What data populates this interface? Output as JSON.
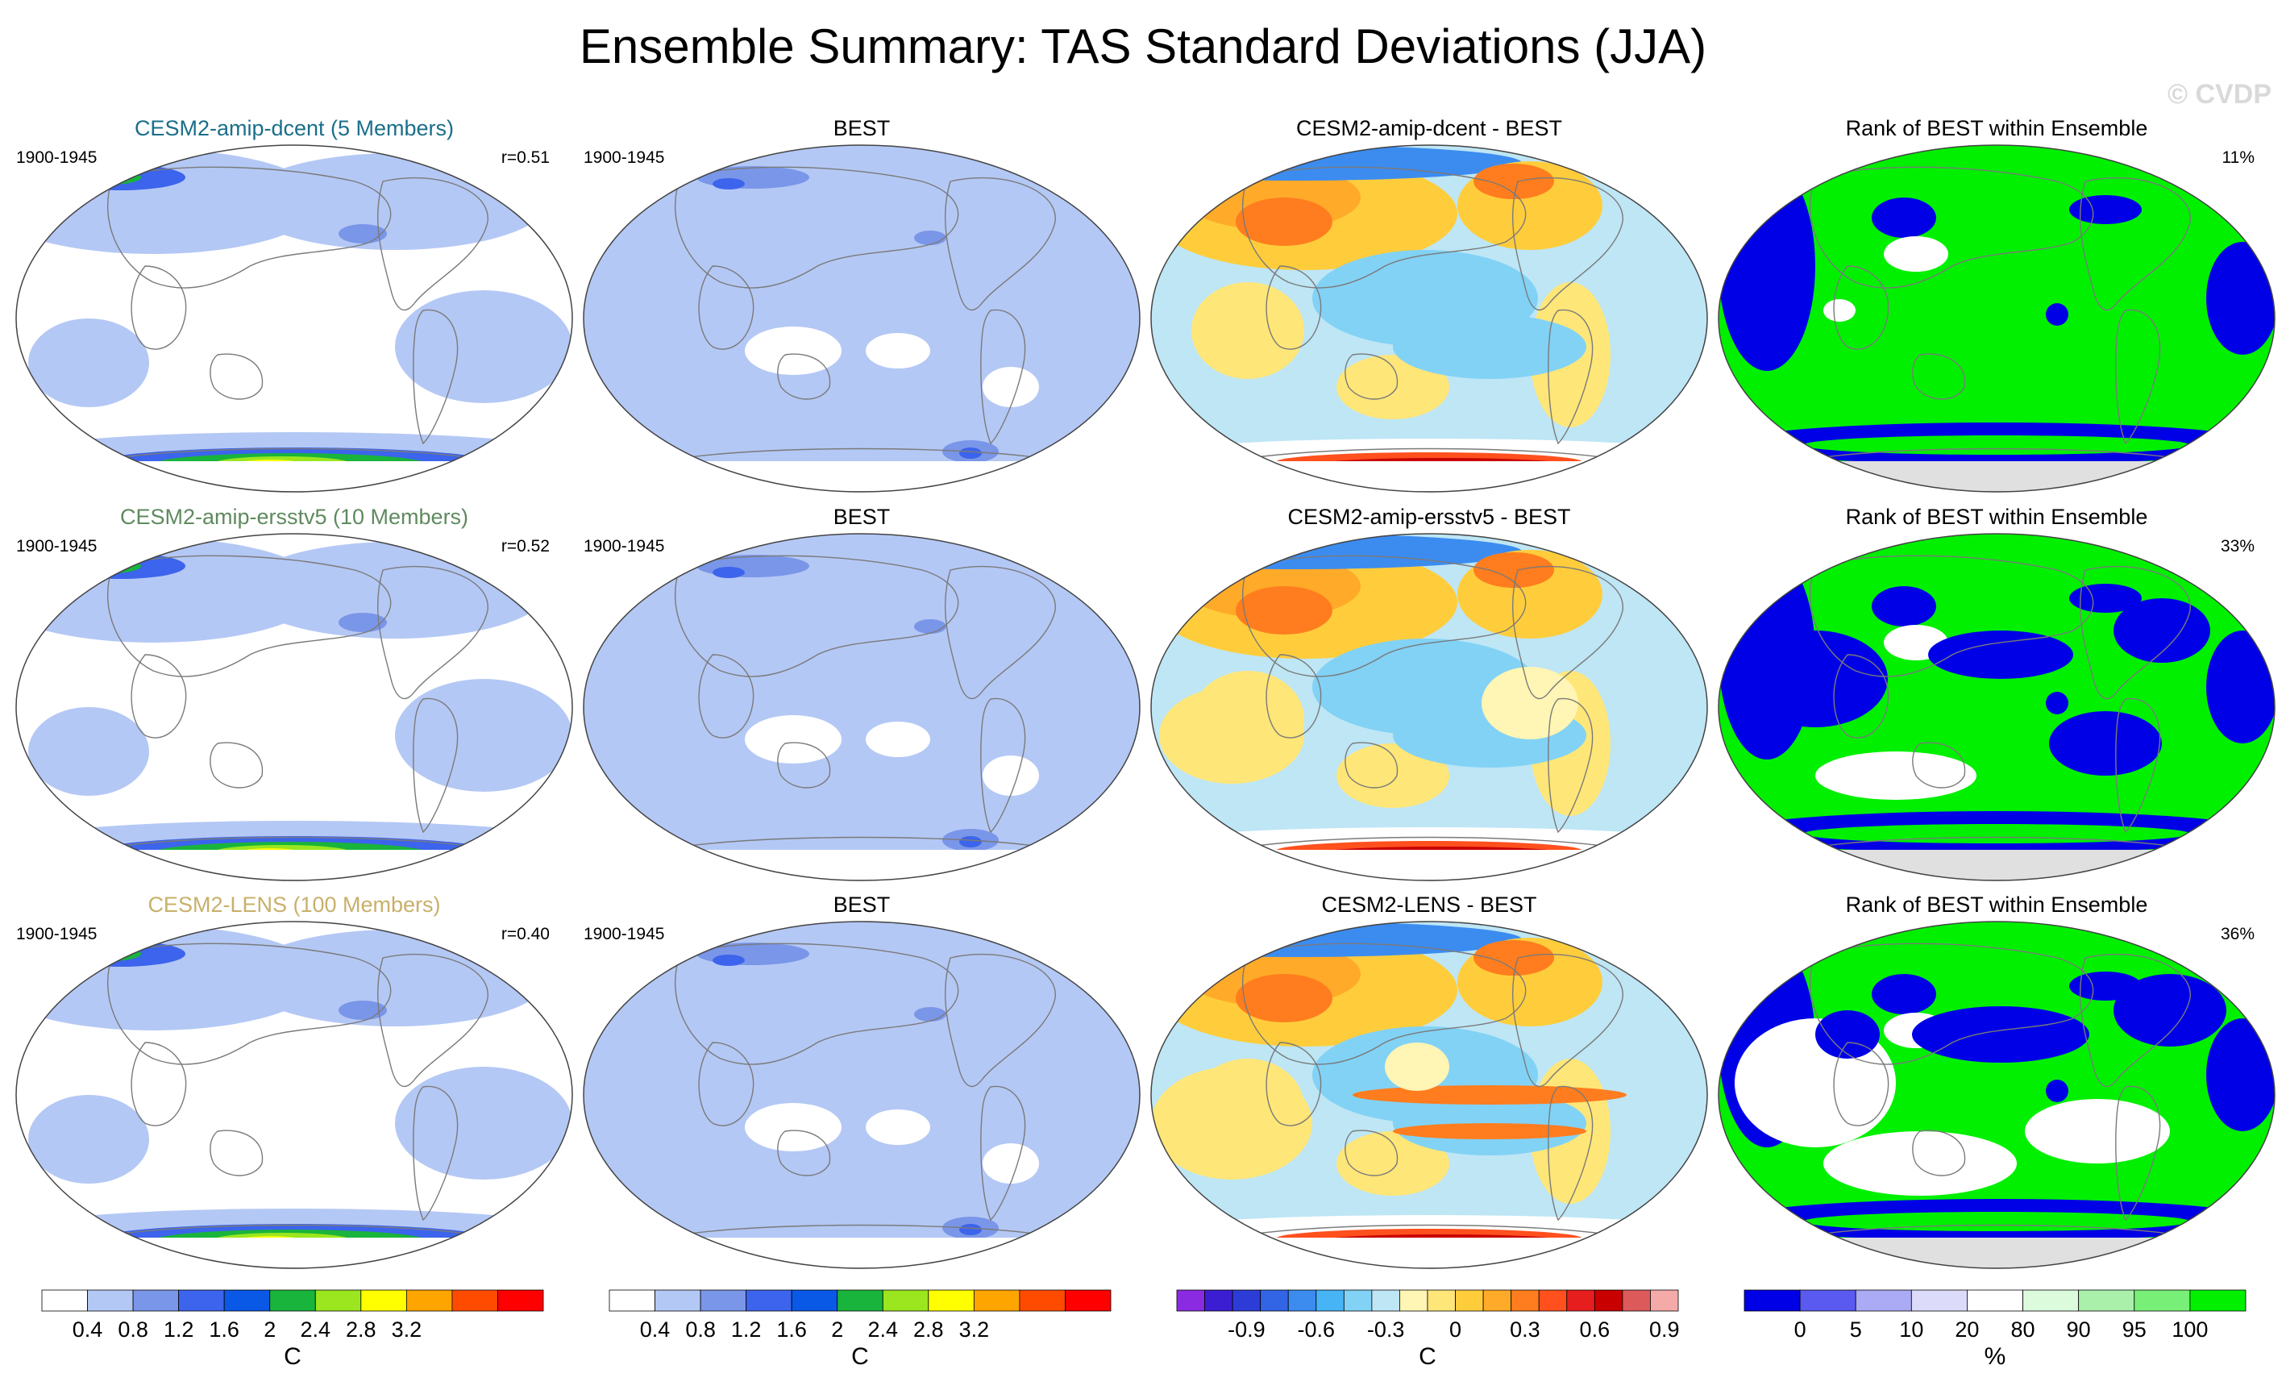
{
  "figure": {
    "title": "Ensemble Summary: TAS Standard Deviations (JJA)",
    "watermark": "© CVDP",
    "watermark_color": "#d9d9d9"
  },
  "rows": [
    {
      "ensemble": {
        "title": "CESM2-amip-dcent (5 Members)",
        "title_color": "#1a6f8a",
        "period": "1900-1945",
        "pattern_corr": "r=0.51"
      },
      "obs": {
        "title": "BEST",
        "period": "1900-1945"
      },
      "diff": {
        "title": "CESM2-amip-dcent - BEST"
      },
      "rank": {
        "title": "Rank of BEST within Ensemble",
        "percent": "11%"
      }
    },
    {
      "ensemble": {
        "title": "CESM2-amip-ersstv5 (10 Members)",
        "title_color": "#5f8a5f",
        "period": "1900-1945",
        "pattern_corr": "r=0.52"
      },
      "obs": {
        "title": "BEST",
        "period": "1900-1945"
      },
      "diff": {
        "title": "CESM2-amip-ersstv5 - BEST"
      },
      "rank": {
        "title": "Rank of BEST within Ensemble",
        "percent": "33%"
      }
    },
    {
      "ensemble": {
        "title": "CESM2-LENS (100 Members)",
        "title_color": "#c8b06a",
        "period": "1900-1945",
        "pattern_corr": "r=0.40"
      },
      "obs": {
        "title": "BEST",
        "period": "1900-1945"
      },
      "diff": {
        "title": "CESM2-LENS - BEST"
      },
      "rank": {
        "title": "Rank of BEST within Ensemble",
        "percent": "36%"
      }
    }
  ],
  "colorbars": [
    {
      "unit": "C",
      "colors": [
        "#ffffff",
        "#b4c8f5",
        "#7a96e8",
        "#3c64ec",
        "#0a58e6",
        "#19b43c",
        "#9be61e",
        "#ffff00",
        "#ffa500",
        "#ff4b00",
        "#ff0000"
      ],
      "labels": [
        "0.4",
        "0.8",
        "1.2",
        "1.6",
        "2",
        "2.4",
        "2.8",
        "3.2"
      ]
    },
    {
      "unit": "C",
      "colors": [
        "#ffffff",
        "#b4c8f5",
        "#7a96e8",
        "#3c64ec",
        "#0a58e6",
        "#19b43c",
        "#9be61e",
        "#ffff00",
        "#ffa500",
        "#ff4b00",
        "#ff0000"
      ],
      "labels": [
        "0.4",
        "0.8",
        "1.2",
        "1.6",
        "2",
        "2.4",
        "2.8",
        "3.2"
      ]
    },
    {
      "unit": "C",
      "colors": [
        "#8a2be2",
        "#3c1ed2",
        "#2d3cd7",
        "#3264e6",
        "#3c8cf0",
        "#46b4f5",
        "#82d2f5",
        "#bee6f5",
        "#fff5b4",
        "#ffe678",
        "#ffcd3c",
        "#ffaa28",
        "#ff7d1e",
        "#ff501e",
        "#e61e1e",
        "#c80000",
        "#dc5a5a",
        "#f5aaaa"
      ],
      "labels": [
        "-0.9",
        "-0.6",
        "-0.3",
        "0",
        "0.3",
        "0.6",
        "0.9"
      ]
    },
    {
      "unit": "%",
      "colors": [
        "#0000e6",
        "#5a5af0",
        "#aaaaf5",
        "#dcdcfa",
        "#ffffff",
        "#dcfadc",
        "#aaf0aa",
        "#78f078",
        "#00f000"
      ],
      "labels": [
        "0",
        "5",
        "10",
        "20",
        "80",
        "90",
        "95",
        "100"
      ]
    }
  ]
}
